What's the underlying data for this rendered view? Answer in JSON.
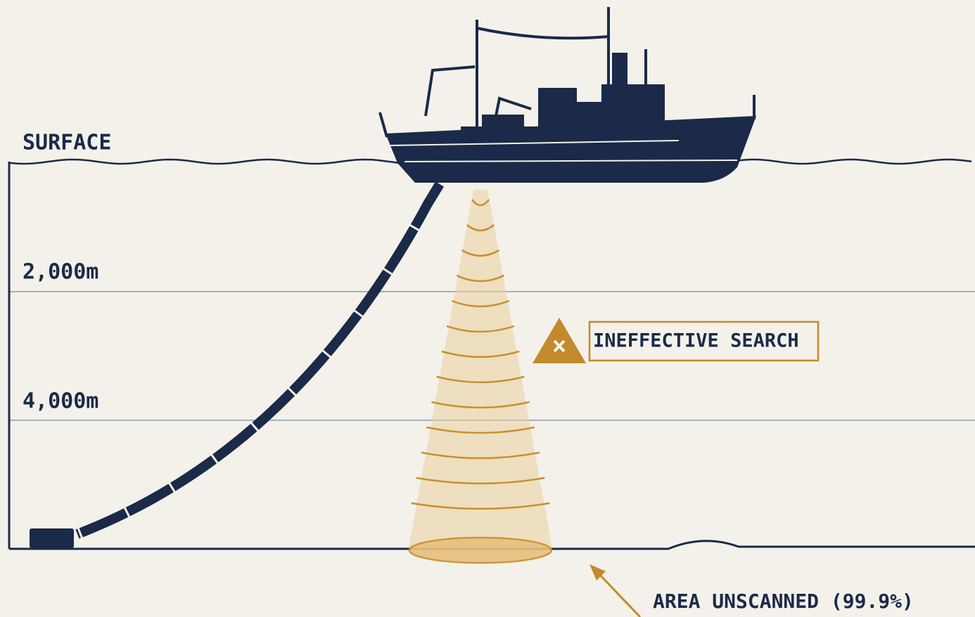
{
  "labels": {
    "surface": "SURFACE",
    "depth_1": "2,000m",
    "depth_2": "4,000m"
  },
  "callouts": {
    "warning": "INEFFECTIVE SEARCH",
    "unscanned": "AREA UNSCANNED (99.9%)"
  }
}
